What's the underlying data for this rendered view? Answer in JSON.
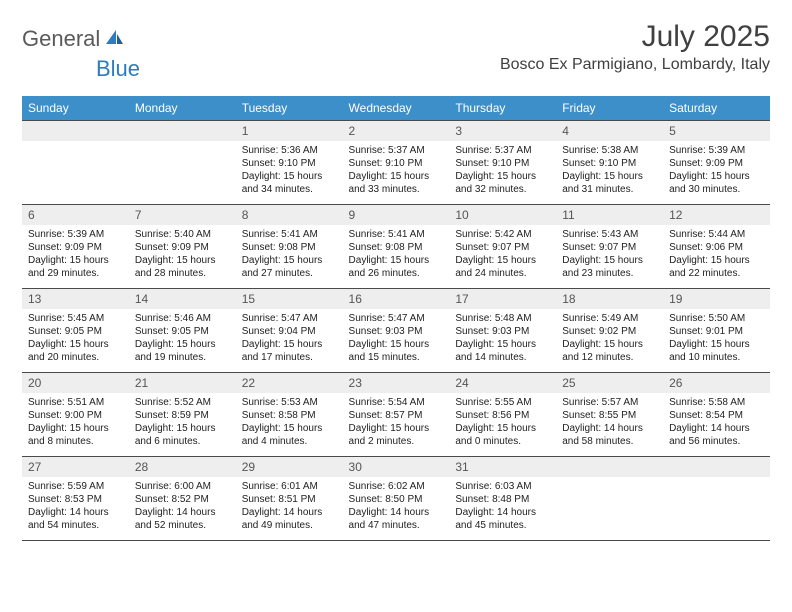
{
  "logo": {
    "general": "General",
    "blue": "Blue"
  },
  "title": "July 2025",
  "location": "Bosco Ex Parmigiano, Lombardy, Italy",
  "colors": {
    "header_bg": "#3d8fc9",
    "header_text": "#ffffff",
    "daynum_bg": "#eeeeee",
    "daynum_text": "#555555",
    "border": "#4a4a4a",
    "logo_gray": "#5a5a5a",
    "logo_blue": "#2d7cc0"
  },
  "day_headers": [
    "Sunday",
    "Monday",
    "Tuesday",
    "Wednesday",
    "Thursday",
    "Friday",
    "Saturday"
  ],
  "weeks": [
    [
      {
        "num": "",
        "sunrise": "",
        "sunset": "",
        "daylight": ""
      },
      {
        "num": "",
        "sunrise": "",
        "sunset": "",
        "daylight": ""
      },
      {
        "num": "1",
        "sunrise": "Sunrise: 5:36 AM",
        "sunset": "Sunset: 9:10 PM",
        "daylight": "Daylight: 15 hours and 34 minutes."
      },
      {
        "num": "2",
        "sunrise": "Sunrise: 5:37 AM",
        "sunset": "Sunset: 9:10 PM",
        "daylight": "Daylight: 15 hours and 33 minutes."
      },
      {
        "num": "3",
        "sunrise": "Sunrise: 5:37 AM",
        "sunset": "Sunset: 9:10 PM",
        "daylight": "Daylight: 15 hours and 32 minutes."
      },
      {
        "num": "4",
        "sunrise": "Sunrise: 5:38 AM",
        "sunset": "Sunset: 9:10 PM",
        "daylight": "Daylight: 15 hours and 31 minutes."
      },
      {
        "num": "5",
        "sunrise": "Sunrise: 5:39 AM",
        "sunset": "Sunset: 9:09 PM",
        "daylight": "Daylight: 15 hours and 30 minutes."
      }
    ],
    [
      {
        "num": "6",
        "sunrise": "Sunrise: 5:39 AM",
        "sunset": "Sunset: 9:09 PM",
        "daylight": "Daylight: 15 hours and 29 minutes."
      },
      {
        "num": "7",
        "sunrise": "Sunrise: 5:40 AM",
        "sunset": "Sunset: 9:09 PM",
        "daylight": "Daylight: 15 hours and 28 minutes."
      },
      {
        "num": "8",
        "sunrise": "Sunrise: 5:41 AM",
        "sunset": "Sunset: 9:08 PM",
        "daylight": "Daylight: 15 hours and 27 minutes."
      },
      {
        "num": "9",
        "sunrise": "Sunrise: 5:41 AM",
        "sunset": "Sunset: 9:08 PM",
        "daylight": "Daylight: 15 hours and 26 minutes."
      },
      {
        "num": "10",
        "sunrise": "Sunrise: 5:42 AM",
        "sunset": "Sunset: 9:07 PM",
        "daylight": "Daylight: 15 hours and 24 minutes."
      },
      {
        "num": "11",
        "sunrise": "Sunrise: 5:43 AM",
        "sunset": "Sunset: 9:07 PM",
        "daylight": "Daylight: 15 hours and 23 minutes."
      },
      {
        "num": "12",
        "sunrise": "Sunrise: 5:44 AM",
        "sunset": "Sunset: 9:06 PM",
        "daylight": "Daylight: 15 hours and 22 minutes."
      }
    ],
    [
      {
        "num": "13",
        "sunrise": "Sunrise: 5:45 AM",
        "sunset": "Sunset: 9:05 PM",
        "daylight": "Daylight: 15 hours and 20 minutes."
      },
      {
        "num": "14",
        "sunrise": "Sunrise: 5:46 AM",
        "sunset": "Sunset: 9:05 PM",
        "daylight": "Daylight: 15 hours and 19 minutes."
      },
      {
        "num": "15",
        "sunrise": "Sunrise: 5:47 AM",
        "sunset": "Sunset: 9:04 PM",
        "daylight": "Daylight: 15 hours and 17 minutes."
      },
      {
        "num": "16",
        "sunrise": "Sunrise: 5:47 AM",
        "sunset": "Sunset: 9:03 PM",
        "daylight": "Daylight: 15 hours and 15 minutes."
      },
      {
        "num": "17",
        "sunrise": "Sunrise: 5:48 AM",
        "sunset": "Sunset: 9:03 PM",
        "daylight": "Daylight: 15 hours and 14 minutes."
      },
      {
        "num": "18",
        "sunrise": "Sunrise: 5:49 AM",
        "sunset": "Sunset: 9:02 PM",
        "daylight": "Daylight: 15 hours and 12 minutes."
      },
      {
        "num": "19",
        "sunrise": "Sunrise: 5:50 AM",
        "sunset": "Sunset: 9:01 PM",
        "daylight": "Daylight: 15 hours and 10 minutes."
      }
    ],
    [
      {
        "num": "20",
        "sunrise": "Sunrise: 5:51 AM",
        "sunset": "Sunset: 9:00 PM",
        "daylight": "Daylight: 15 hours and 8 minutes."
      },
      {
        "num": "21",
        "sunrise": "Sunrise: 5:52 AM",
        "sunset": "Sunset: 8:59 PM",
        "daylight": "Daylight: 15 hours and 6 minutes."
      },
      {
        "num": "22",
        "sunrise": "Sunrise: 5:53 AM",
        "sunset": "Sunset: 8:58 PM",
        "daylight": "Daylight: 15 hours and 4 minutes."
      },
      {
        "num": "23",
        "sunrise": "Sunrise: 5:54 AM",
        "sunset": "Sunset: 8:57 PM",
        "daylight": "Daylight: 15 hours and 2 minutes."
      },
      {
        "num": "24",
        "sunrise": "Sunrise: 5:55 AM",
        "sunset": "Sunset: 8:56 PM",
        "daylight": "Daylight: 15 hours and 0 minutes."
      },
      {
        "num": "25",
        "sunrise": "Sunrise: 5:57 AM",
        "sunset": "Sunset: 8:55 PM",
        "daylight": "Daylight: 14 hours and 58 minutes."
      },
      {
        "num": "26",
        "sunrise": "Sunrise: 5:58 AM",
        "sunset": "Sunset: 8:54 PM",
        "daylight": "Daylight: 14 hours and 56 minutes."
      }
    ],
    [
      {
        "num": "27",
        "sunrise": "Sunrise: 5:59 AM",
        "sunset": "Sunset: 8:53 PM",
        "daylight": "Daylight: 14 hours and 54 minutes."
      },
      {
        "num": "28",
        "sunrise": "Sunrise: 6:00 AM",
        "sunset": "Sunset: 8:52 PM",
        "daylight": "Daylight: 14 hours and 52 minutes."
      },
      {
        "num": "29",
        "sunrise": "Sunrise: 6:01 AM",
        "sunset": "Sunset: 8:51 PM",
        "daylight": "Daylight: 14 hours and 49 minutes."
      },
      {
        "num": "30",
        "sunrise": "Sunrise: 6:02 AM",
        "sunset": "Sunset: 8:50 PM",
        "daylight": "Daylight: 14 hours and 47 minutes."
      },
      {
        "num": "31",
        "sunrise": "Sunrise: 6:03 AM",
        "sunset": "Sunset: 8:48 PM",
        "daylight": "Daylight: 14 hours and 45 minutes."
      },
      {
        "num": "",
        "sunrise": "",
        "sunset": "",
        "daylight": ""
      },
      {
        "num": "",
        "sunrise": "",
        "sunset": "",
        "daylight": ""
      }
    ]
  ]
}
